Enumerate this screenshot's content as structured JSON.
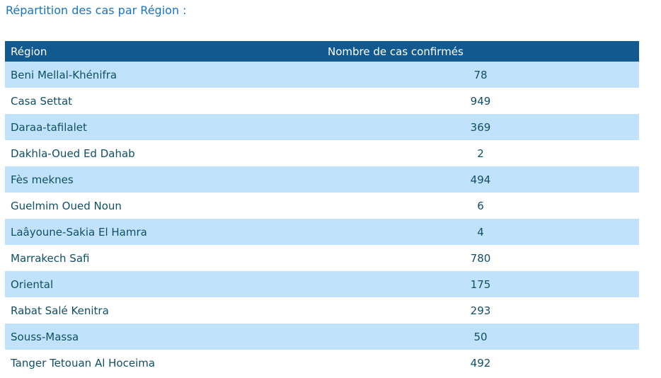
{
  "title": "Répartition des cas par Région :",
  "table": {
    "columns": {
      "region": "Région",
      "cases": "Nombre de cas confirmés"
    },
    "rows": [
      {
        "region": "Beni Mellal-Khénifra",
        "cases": "78"
      },
      {
        "region": "Casa Settat",
        "cases": "949"
      },
      {
        "region": "Daraa-tafilalet",
        "cases": "369"
      },
      {
        "region": "Dakhla-Oued Ed Dahab",
        "cases": "2"
      },
      {
        "region": "Fès meknes",
        "cases": "494"
      },
      {
        "region": "Guelmim Oued Noun",
        "cases": "6"
      },
      {
        "region": "Laâyoune-Sakia El Hamra",
        "cases": "4"
      },
      {
        "region": "Marrakech Safi",
        "cases": "780"
      },
      {
        "region": "Oriental",
        "cases": "175"
      },
      {
        "region": "Rabat Salé Kenitra",
        "cases": "293"
      },
      {
        "region": "Souss-Massa",
        "cases": "50"
      },
      {
        "region": "Tanger Tetouan Al Hoceima",
        "cases": "492"
      }
    ]
  },
  "colors": {
    "title_text": "#1674C4",
    "header_bg": "#12598F",
    "header_text": "#FFFFFF",
    "row_alt_bg": "#C0E2FB",
    "row_text": "#104F66",
    "page_bg": "#FFFFFF"
  }
}
